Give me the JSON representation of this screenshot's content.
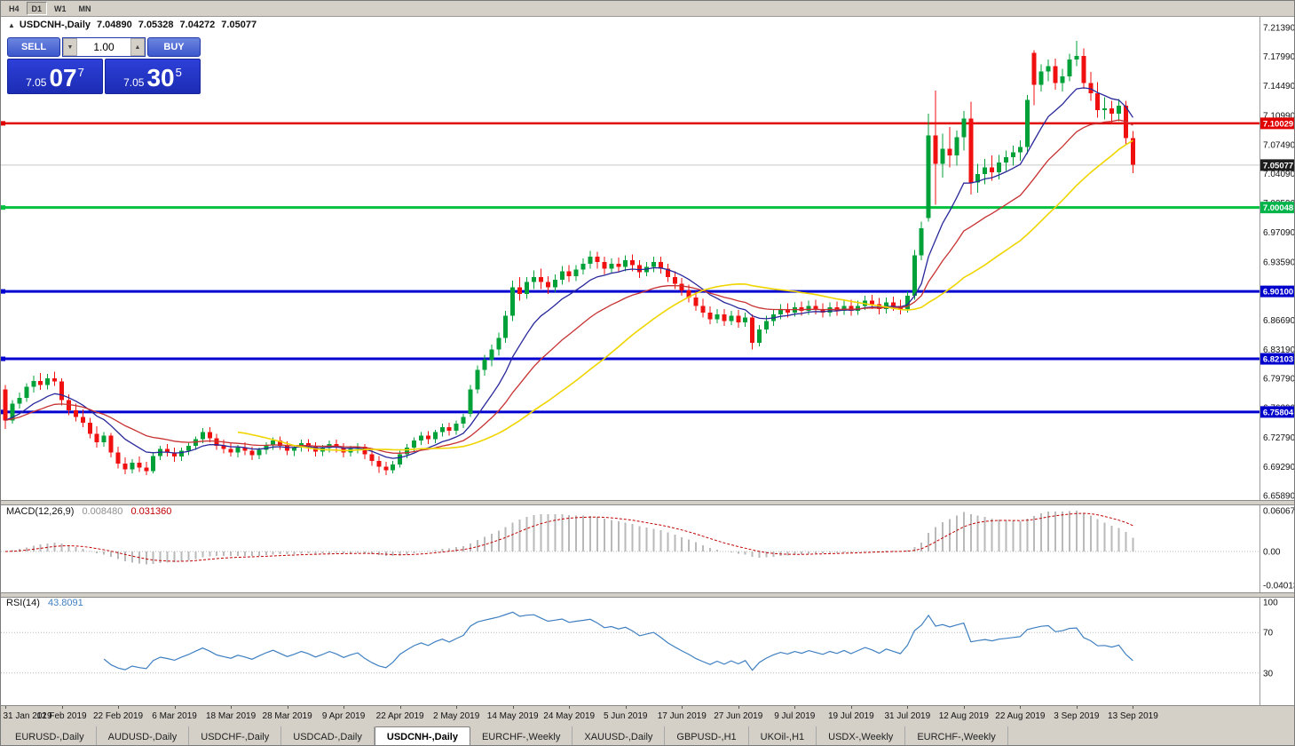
{
  "toolbar": {
    "timeframes": [
      {
        "label": "H4",
        "active": false
      },
      {
        "label": "D1",
        "active": true
      },
      {
        "label": "W1",
        "active": false
      },
      {
        "label": "MN",
        "active": false
      }
    ]
  },
  "symbol_bar": {
    "arrow": "▲",
    "symbol": "USDCNH-,Daily",
    "open": "7.04890",
    "high": "7.05328",
    "low": "7.04272",
    "close": "7.05077"
  },
  "one_click": {
    "sell_label": "SELL",
    "buy_label": "BUY",
    "volume": "1.00",
    "spin_down": "▼",
    "spin_up": "▲",
    "sell_price_prefix": "7.05",
    "sell_price_big": "07",
    "sell_price_sup": "7",
    "buy_price_prefix": "7.05",
    "buy_price_big": "30",
    "buy_price_sup": "5"
  },
  "price_axis": {
    "labels": [
      "7.21390",
      "7.17990",
      "7.14490",
      "7.10990",
      "7.07490",
      "7.04090",
      "7.00590",
      "6.97090",
      "6.93590",
      "6.90090",
      "6.86690",
      "6.83190",
      "6.79790",
      "6.76290",
      "6.72790",
      "6.69290",
      "6.65890"
    ],
    "tags": [
      {
        "text": "7.10029",
        "bg": "#e00000"
      },
      {
        "text": "7.05077",
        "bg": "#1d1d1d"
      },
      {
        "text": "7.00048",
        "bg": "#00b44a"
      },
      {
        "text": "6.90100",
        "bg": "#0000cd"
      },
      {
        "text": "6.82103",
        "bg": "#0000cd"
      },
      {
        "text": "6.75804",
        "bg": "#0000cd"
      }
    ]
  },
  "macd_panel": {
    "label": "MACD(12,26,9)",
    "value_main": "0.008480",
    "value_signal": "0.031360",
    "axis_labels": [
      "0.060674",
      "0.00",
      "-0.040132"
    ],
    "fast": 12,
    "slow": 26,
    "signal": 9,
    "hist_color": "#b9b9b9",
    "signal_color": "#c00000"
  },
  "rsi_panel": {
    "label": "RSI(14)",
    "value": "43.8091",
    "axis_labels": [
      "100",
      "70",
      "30"
    ],
    "period": 14,
    "levels": [
      70,
      30
    ],
    "color": "#3e7fc1"
  },
  "date_axis": {
    "labels": [
      "31 Jan 2019",
      "12 Feb 2019",
      "22 Feb 2019",
      "6 Mar 2019",
      "18 Mar 2019",
      "28 Mar 2019",
      "9 Apr 2019",
      "22 Apr 2019",
      "2 May 2019",
      "14 May 2019",
      "24 May 2019",
      "5 Jun 2019",
      "17 Jun 2019",
      "27 Jun 2019",
      "9 Jul 2019",
      "19 Jul 2019",
      "31 Jul 2019",
      "12 Aug 2019",
      "22 Aug 2019",
      "3 Sep 2019",
      "13 Sep 2019"
    ]
  },
  "tabs": [
    {
      "label": "EURUSD-,Daily",
      "active": false
    },
    {
      "label": "AUDUSD-,Daily",
      "active": false
    },
    {
      "label": "USDCHF-,Daily",
      "active": false
    },
    {
      "label": "USDCAD-,Daily",
      "active": false
    },
    {
      "label": "USDCNH-,Daily",
      "active": true
    },
    {
      "label": "EURCHF-,Weekly",
      "active": false
    },
    {
      "label": "XAUUSD-,Daily",
      "active": false
    },
    {
      "label": "GBPUSD-,H1",
      "active": false
    },
    {
      "label": "UKOil-,H1",
      "active": false
    },
    {
      "label": "USDX-,Weekly",
      "active": false
    },
    {
      "label": "EURCHF-,Weekly",
      "active": false
    }
  ],
  "chart_data": {
    "type": "candlestick",
    "title": "USDCNH-,Daily",
    "y_axis_top": 7.2139,
    "y_axis_bottom": 6.6589,
    "current_price": 7.05077,
    "up_color": "#00a138",
    "down_color": "#f01010",
    "hlines": [
      {
        "price": 7.10029,
        "color": "#e00000",
        "width": 2.5
      },
      {
        "price": 7.00048,
        "color": "#00c040",
        "width": 3
      },
      {
        "price": 6.901,
        "color": "#0000d0",
        "width": 3
      },
      {
        "price": 6.82103,
        "color": "#0000d0",
        "width": 3
      },
      {
        "price": 6.75804,
        "color": "#0000d0",
        "width": 3
      }
    ],
    "ma": [
      {
        "period": 10,
        "type": "ema",
        "color": "#28289b",
        "width": 1.3
      },
      {
        "period": 22,
        "type": "ema",
        "color": "#c83232",
        "width": 1.3
      },
      {
        "period": 34,
        "type": "sma",
        "color": "#efd500",
        "width": 1.6
      }
    ],
    "candles": [
      [
        6.785,
        6.79,
        6.738,
        6.748
      ],
      [
        6.748,
        6.772,
        6.744,
        6.768
      ],
      [
        6.768,
        6.781,
        6.762,
        6.775
      ],
      [
        6.775,
        6.792,
        6.77,
        6.788
      ],
      [
        6.788,
        6.801,
        6.781,
        6.795
      ],
      [
        6.795,
        6.804,
        6.784,
        6.79
      ],
      [
        6.79,
        6.803,
        6.785,
        6.798
      ],
      [
        6.798,
        6.806,
        6.789,
        6.794
      ],
      [
        6.794,
        6.798,
        6.766,
        6.772
      ],
      [
        6.772,
        6.779,
        6.754,
        6.76
      ],
      [
        6.76,
        6.768,
        6.747,
        6.752
      ],
      [
        6.752,
        6.761,
        6.74,
        6.745
      ],
      [
        6.745,
        6.751,
        6.727,
        6.732
      ],
      [
        6.732,
        6.741,
        6.716,
        6.722
      ],
      [
        6.722,
        6.734,
        6.717,
        6.73
      ],
      [
        6.73,
        6.733,
        6.704,
        6.71
      ],
      [
        6.71,
        6.717,
        6.691,
        6.697
      ],
      [
        6.697,
        6.704,
        6.684,
        6.69
      ],
      [
        6.69,
        6.702,
        6.685,
        6.698
      ],
      [
        6.698,
        6.705,
        6.687,
        6.692
      ],
      [
        6.692,
        6.699,
        6.683,
        6.688
      ],
      [
        6.688,
        6.709,
        6.685,
        6.706
      ],
      [
        6.706,
        6.718,
        6.701,
        6.714
      ],
      [
        6.714,
        6.72,
        6.705,
        6.71
      ],
      [
        6.71,
        6.716,
        6.699,
        6.705
      ],
      [
        6.705,
        6.716,
        6.7,
        6.712
      ],
      [
        6.712,
        6.722,
        6.707,
        6.718
      ],
      [
        6.718,
        6.729,
        6.713,
        6.726
      ],
      [
        6.726,
        6.739,
        6.721,
        6.734
      ],
      [
        6.734,
        6.74,
        6.722,
        6.727
      ],
      [
        6.727,
        6.732,
        6.713,
        6.718
      ],
      [
        6.718,
        6.725,
        6.709,
        6.714
      ],
      [
        6.714,
        6.721,
        6.705,
        6.71
      ],
      [
        6.71,
        6.719,
        6.704,
        6.716
      ],
      [
        6.716,
        6.722,
        6.707,
        6.712
      ],
      [
        6.712,
        6.717,
        6.701,
        6.707
      ],
      [
        6.707,
        6.716,
        6.702,
        6.713
      ],
      [
        6.713,
        6.722,
        6.708,
        6.719
      ],
      [
        6.719,
        6.728,
        6.713,
        6.724
      ],
      [
        6.724,
        6.729,
        6.713,
        6.718
      ],
      [
        6.718,
        6.723,
        6.707,
        6.712
      ],
      [
        6.712,
        6.719,
        6.706,
        6.716
      ],
      [
        6.716,
        6.725,
        6.711,
        6.721
      ],
      [
        6.721,
        6.726,
        6.711,
        6.717
      ],
      [
        6.717,
        6.722,
        6.705,
        6.711
      ],
      [
        6.711,
        6.719,
        6.706,
        6.715
      ],
      [
        6.715,
        6.724,
        6.71,
        6.72
      ],
      [
        6.72,
        6.725,
        6.71,
        6.716
      ],
      [
        6.716,
        6.721,
        6.704,
        6.71
      ],
      [
        6.71,
        6.718,
        6.705,
        6.714
      ],
      [
        6.714,
        6.721,
        6.709,
        6.717
      ],
      [
        6.717,
        6.72,
        6.702,
        6.708
      ],
      [
        6.708,
        6.713,
        6.694,
        6.7
      ],
      [
        6.7,
        6.706,
        6.686,
        6.693
      ],
      [
        6.693,
        6.699,
        6.683,
        6.689
      ],
      [
        6.689,
        6.7,
        6.685,
        6.696
      ],
      [
        6.696,
        6.712,
        6.692,
        6.708
      ],
      [
        6.708,
        6.72,
        6.703,
        6.716
      ],
      [
        6.716,
        6.728,
        6.711,
        6.724
      ],
      [
        6.724,
        6.734,
        6.719,
        6.73
      ],
      [
        6.73,
        6.735,
        6.72,
        6.726
      ],
      [
        6.726,
        6.737,
        6.721,
        6.734
      ],
      [
        6.734,
        6.744,
        6.729,
        6.74
      ],
      [
        6.74,
        6.745,
        6.73,
        6.736
      ],
      [
        6.736,
        6.748,
        6.731,
        6.744
      ],
      [
        6.744,
        6.756,
        6.739,
        6.752
      ],
      [
        6.756,
        6.79,
        6.752,
        6.785
      ],
      [
        6.785,
        6.813,
        6.78,
        6.808
      ],
      [
        6.808,
        6.826,
        6.801,
        6.82
      ],
      [
        6.82,
        6.838,
        6.812,
        6.832
      ],
      [
        6.832,
        6.852,
        6.825,
        6.846
      ],
      [
        6.846,
        6.878,
        6.84,
        6.872
      ],
      [
        6.872,
        6.914,
        6.866,
        6.906
      ],
      [
        6.906,
        6.918,
        6.89,
        6.898
      ],
      [
        6.898,
        6.918,
        6.892,
        6.912
      ],
      [
        6.912,
        6.926,
        6.904,
        6.918
      ],
      [
        6.918,
        6.928,
        6.904,
        6.912
      ],
      [
        6.912,
        6.919,
        6.898,
        6.906
      ],
      [
        6.906,
        6.921,
        6.9,
        6.915
      ],
      [
        6.915,
        6.931,
        6.909,
        6.925
      ],
      [
        6.925,
        6.932,
        6.912,
        6.919
      ],
      [
        6.919,
        6.932,
        6.913,
        6.927
      ],
      [
        6.927,
        6.94,
        6.921,
        6.934
      ],
      [
        6.934,
        6.949,
        6.928,
        6.942
      ],
      [
        6.942,
        6.948,
        6.928,
        6.936
      ],
      [
        6.936,
        6.942,
        6.921,
        6.928
      ],
      [
        6.928,
        6.94,
        6.922,
        6.934
      ],
      [
        6.934,
        6.941,
        6.924,
        6.93
      ],
      [
        6.93,
        6.944,
        6.925,
        6.938
      ],
      [
        6.938,
        6.945,
        6.925,
        6.932
      ],
      [
        6.932,
        6.938,
        6.917,
        6.924
      ],
      [
        6.924,
        6.936,
        6.919,
        6.93
      ],
      [
        6.93,
        6.942,
        6.924,
        6.936
      ],
      [
        6.936,
        6.942,
        6.922,
        6.928
      ],
      [
        6.928,
        6.934,
        6.912,
        6.918
      ],
      [
        6.918,
        6.925,
        6.904,
        6.91
      ],
      [
        6.91,
        6.917,
        6.896,
        6.902
      ],
      [
        6.902,
        6.909,
        6.888,
        6.894
      ],
      [
        6.894,
        6.901,
        6.878,
        6.884
      ],
      [
        6.884,
        6.892,
        6.87,
        6.876
      ],
      [
        6.876,
        6.883,
        6.862,
        6.868
      ],
      [
        6.868,
        6.88,
        6.863,
        6.874
      ],
      [
        6.874,
        6.88,
        6.86,
        6.866
      ],
      [
        6.866,
        6.878,
        6.861,
        6.872
      ],
      [
        6.872,
        6.879,
        6.858,
        6.864
      ],
      [
        6.864,
        6.876,
        6.859,
        6.87
      ],
      [
        6.87,
        6.874,
        6.832,
        6.84
      ],
      [
        6.84,
        6.861,
        6.836,
        6.856
      ],
      [
        6.856,
        6.872,
        6.851,
        6.866
      ],
      [
        6.866,
        6.88,
        6.86,
        6.874
      ],
      [
        6.874,
        6.886,
        6.868,
        6.88
      ],
      [
        6.88,
        6.887,
        6.87,
        6.876
      ],
      [
        6.876,
        6.888,
        6.871,
        6.882
      ],
      [
        6.882,
        6.889,
        6.872,
        6.878
      ],
      [
        6.878,
        6.89,
        6.873,
        6.884
      ],
      [
        6.884,
        6.891,
        6.874,
        6.88
      ],
      [
        6.88,
        6.887,
        6.87,
        6.876
      ],
      [
        6.876,
        6.888,
        6.871,
        6.882
      ],
      [
        6.882,
        6.889,
        6.872,
        6.878
      ],
      [
        6.878,
        6.89,
        6.873,
        6.884
      ],
      [
        6.884,
        6.891,
        6.872,
        6.878
      ],
      [
        6.878,
        6.89,
        6.873,
        6.884
      ],
      [
        6.884,
        6.896,
        6.879,
        6.89
      ],
      [
        6.89,
        6.897,
        6.88,
        6.886
      ],
      [
        6.886,
        6.893,
        6.874,
        6.88
      ],
      [
        6.88,
        6.894,
        6.875,
        6.888
      ],
      [
        6.888,
        6.895,
        6.878,
        6.884
      ],
      [
        6.884,
        6.891,
        6.874,
        6.88
      ],
      [
        6.88,
        6.901,
        6.876,
        6.896
      ],
      [
        6.896,
        6.95,
        6.891,
        6.944
      ],
      [
        6.944,
        6.984,
        6.938,
        6.976
      ],
      [
        6.988,
        7.112,
        6.984,
        7.086
      ],
      [
        7.086,
        7.139,
        7.004,
        7.052
      ],
      [
        7.052,
        7.088,
        7.036,
        7.07
      ],
      [
        7.07,
        7.096,
        7.048,
        7.062
      ],
      [
        7.062,
        7.092,
        7.05,
        7.084
      ],
      [
        7.084,
        7.115,
        7.068,
        7.106
      ],
      [
        7.106,
        7.126,
        7.016,
        7.03
      ],
      [
        7.03,
        7.052,
        7.018,
        7.04
      ],
      [
        7.04,
        7.058,
        7.028,
        7.048
      ],
      [
        7.048,
        7.062,
        7.032,
        7.042
      ],
      [
        7.042,
        7.063,
        7.034,
        7.054
      ],
      [
        7.054,
        7.068,
        7.044,
        7.06
      ],
      [
        7.06,
        7.074,
        7.05,
        7.066
      ],
      [
        7.066,
        7.08,
        7.056,
        7.072
      ],
      [
        7.072,
        7.134,
        7.064,
        7.128
      ],
      [
        7.184,
        7.187,
        7.122,
        7.146
      ],
      [
        7.146,
        7.17,
        7.138,
        7.162
      ],
      [
        7.162,
        7.176,
        7.15,
        7.168
      ],
      [
        7.168,
        7.177,
        7.14,
        7.148
      ],
      [
        7.148,
        7.165,
        7.138,
        7.156
      ],
      [
        7.156,
        7.183,
        7.15,
        7.176
      ],
      [
        7.176,
        7.198,
        7.168,
        7.18
      ],
      [
        7.18,
        7.189,
        7.141,
        7.148
      ],
      [
        7.148,
        7.161,
        7.127,
        7.136
      ],
      [
        7.136,
        7.149,
        7.107,
        7.116
      ],
      [
        7.116,
        7.131,
        7.105,
        7.118
      ],
      [
        7.118,
        7.127,
        7.099,
        7.112
      ],
      [
        7.112,
        7.129,
        7.103,
        7.121
      ],
      [
        7.121,
        7.127,
        7.075,
        7.083
      ],
      [
        7.083,
        7.091,
        7.041,
        7.051
      ]
    ]
  }
}
